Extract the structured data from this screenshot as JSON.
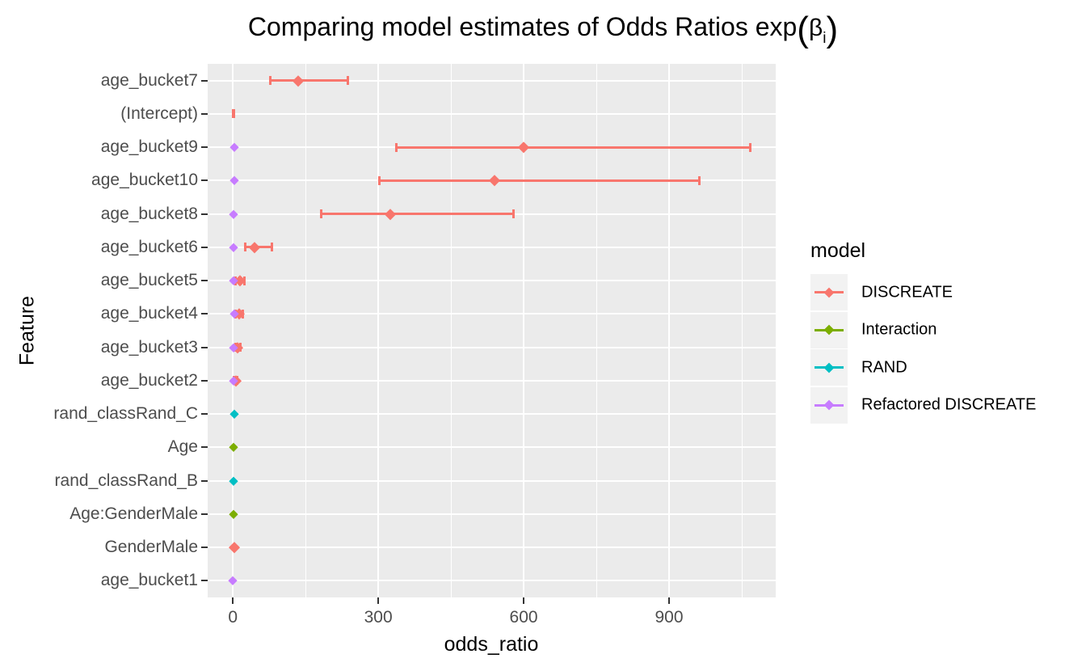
{
  "header": {
    "title_main": "Comparing model estimates of Odds Ratios exp",
    "paren_open": "(",
    "beta": "β",
    "beta_sub": "i",
    "paren_close": ")"
  },
  "chart_data": {
    "type": "scatter",
    "subtype": "pointrange-errorbar",
    "title": "Comparing model estimates of Odds Ratios exp(βᵢ)",
    "xlabel": "odds_ratio",
    "ylabel": "Feature",
    "x_ticks": [
      0,
      300,
      600,
      900
    ],
    "x_minor_gridlines": [
      150,
      450,
      750,
      1050
    ],
    "xlim": [
      -52,
      1120
    ],
    "grid": "on",
    "panel_background": "#EBEBEB",
    "legend_position": "right",
    "legend": {
      "title": "model",
      "entries": [
        {
          "label": "DISCREATE",
          "color": "#F8766D"
        },
        {
          "label": "Interaction",
          "color": "#7CAE00"
        },
        {
          "label": "RAND",
          "color": "#00BFC4"
        },
        {
          "label": "Refactored DISCREATE",
          "color": "#C77CFF"
        }
      ]
    },
    "categories": [
      "age_bucket7",
      "(Intercept)",
      "age_bucket9",
      "age_bucket10",
      "age_bucket8",
      "age_bucket6",
      "age_bucket5",
      "age_bucket4",
      "age_bucket3",
      "age_bucket2",
      "rand_classRand_C",
      "Age",
      "rand_classRand_B",
      "Age:GenderMale",
      "GenderMale",
      "age_bucket1"
    ],
    "points": [
      {
        "feature": "age_bucket7",
        "model": "DISCREATE",
        "value": 134,
        "lo": 77,
        "hi": 238
      },
      {
        "feature": "(Intercept)",
        "model": "DISCREATE",
        "lo": 1,
        "hi": 3
      },
      {
        "feature": "age_bucket9",
        "model": "DISCREATE",
        "value": 600,
        "lo": 338,
        "hi": 1067
      },
      {
        "feature": "age_bucket10",
        "model": "DISCREATE",
        "value": 540,
        "lo": 303,
        "hi": 963
      },
      {
        "feature": "age_bucket8",
        "model": "DISCREATE",
        "value": 324,
        "lo": 183,
        "hi": 579
      },
      {
        "feature": "age_bucket6",
        "model": "DISCREATE",
        "value": 45,
        "lo": 26,
        "hi": 80
      },
      {
        "feature": "age_bucket5",
        "model": "DISCREATE",
        "value": 15,
        "lo": 6,
        "hi": 24
      },
      {
        "feature": "age_bucket4",
        "model": "DISCREATE",
        "value": 13,
        "lo": 6,
        "hi": 20
      },
      {
        "feature": "age_bucket3",
        "model": "DISCREATE",
        "value": 10,
        "lo": 5,
        "hi": 16
      },
      {
        "feature": "age_bucket2",
        "model": "DISCREATE",
        "value": 6,
        "lo": 3,
        "hi": 9
      },
      {
        "feature": "GenderMale",
        "model": "DISCREATE",
        "value": 3
      },
      {
        "feature": "rand_classRand_C",
        "model": "RAND",
        "value": 2.5
      },
      {
        "feature": "rand_classRand_B",
        "model": "RAND",
        "value": 2
      },
      {
        "feature": "Age",
        "model": "Interaction",
        "value": 2
      },
      {
        "feature": "Age:GenderMale",
        "model": "Interaction",
        "value": 1.5
      },
      {
        "feature": "age_bucket9",
        "model": "Refactored DISCREATE",
        "value": 3
      },
      {
        "feature": "age_bucket10",
        "model": "Refactored DISCREATE",
        "value": 3
      },
      {
        "feature": "age_bucket8",
        "model": "Refactored DISCREATE",
        "value": 2
      },
      {
        "feature": "age_bucket6",
        "model": "Refactored DISCREATE",
        "value": 2
      },
      {
        "feature": "age_bucket5",
        "model": "Refactored DISCREATE",
        "value": 1.5
      },
      {
        "feature": "age_bucket4",
        "model": "Refactored DISCREATE",
        "value": 3
      },
      {
        "feature": "age_bucket3",
        "model": "Refactored DISCREATE",
        "value": 1
      },
      {
        "feature": "age_bucket2",
        "model": "Refactored DISCREATE",
        "value": 0.6
      },
      {
        "feature": "age_bucket1",
        "model": "Refactored DISCREATE",
        "value": 0.5
      }
    ]
  }
}
